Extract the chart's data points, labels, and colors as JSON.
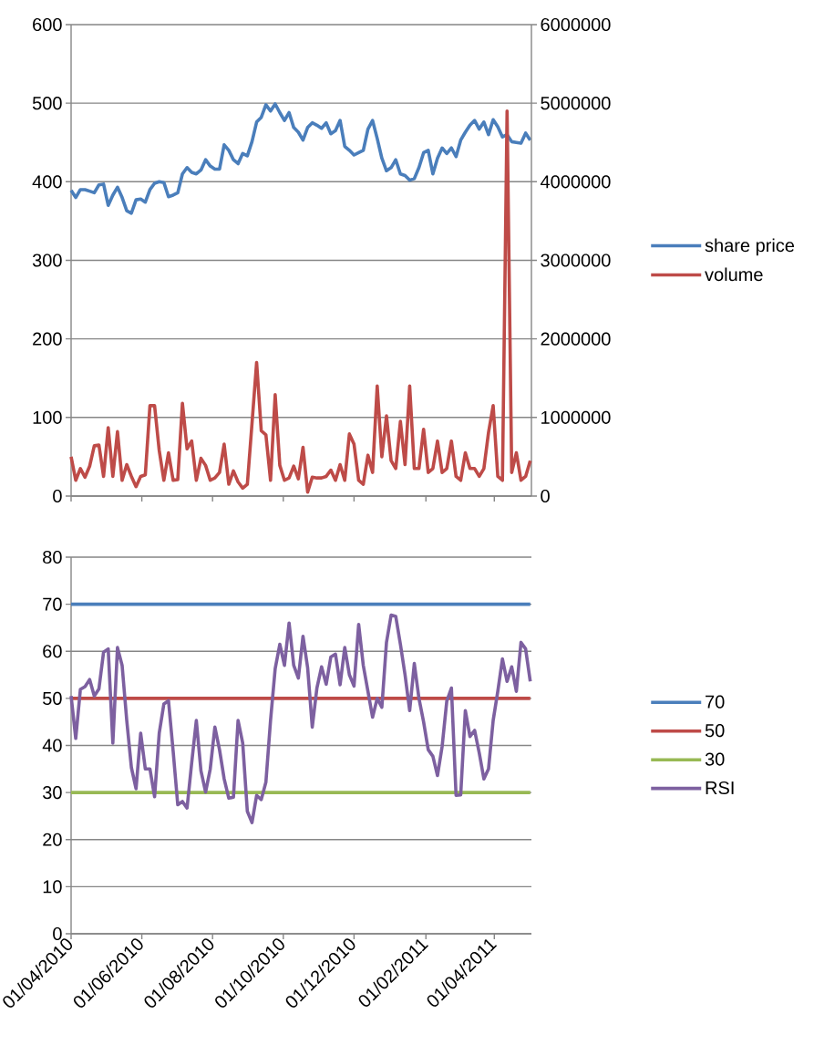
{
  "chart_data": [
    {
      "type": "line",
      "x": [
        "2010-04-01",
        "2010-04-05",
        "2010-04-09",
        "2010-04-13",
        "2010-04-17",
        "2010-04-21",
        "2010-04-25",
        "2010-04-29",
        "2010-05-03",
        "2010-05-07",
        "2010-05-11",
        "2010-05-15",
        "2010-05-19",
        "2010-05-23",
        "2010-05-27",
        "2010-05-31",
        "2010-06-04",
        "2010-06-08",
        "2010-06-12",
        "2010-06-16",
        "2010-06-20",
        "2010-06-24",
        "2010-06-28",
        "2010-07-02",
        "2010-07-06",
        "2010-07-10",
        "2010-07-14",
        "2010-07-18",
        "2010-07-22",
        "2010-07-26",
        "2010-07-30",
        "2010-08-03",
        "2010-08-07",
        "2010-08-11",
        "2010-08-15",
        "2010-08-19",
        "2010-08-23",
        "2010-08-27",
        "2010-08-31",
        "2010-09-04",
        "2010-09-08",
        "2010-09-12",
        "2010-09-16",
        "2010-09-20",
        "2010-09-24",
        "2010-09-28",
        "2010-10-02",
        "2010-10-06",
        "2010-10-10",
        "2010-10-14",
        "2010-10-18",
        "2010-10-22",
        "2010-10-26",
        "2010-10-30",
        "2010-11-03",
        "2010-11-07",
        "2010-11-11",
        "2010-11-15",
        "2010-11-19",
        "2010-11-23",
        "2010-11-27",
        "2010-12-01",
        "2010-12-05",
        "2010-12-09",
        "2010-12-13",
        "2010-12-17",
        "2010-12-21",
        "2010-12-25",
        "2010-12-29",
        "2011-01-02",
        "2011-01-06",
        "2011-01-10",
        "2011-01-14",
        "2011-01-18",
        "2011-01-22",
        "2011-01-26",
        "2011-01-30",
        "2011-02-03",
        "2011-02-07",
        "2011-02-11",
        "2011-02-15",
        "2011-02-19",
        "2011-02-23",
        "2011-02-27",
        "2011-03-03",
        "2011-03-07",
        "2011-03-11",
        "2011-03-15",
        "2011-03-19",
        "2011-03-23",
        "2011-03-27",
        "2011-03-31",
        "2011-04-04",
        "2011-04-08",
        "2011-04-12",
        "2011-04-16",
        "2011-04-20",
        "2011-04-24",
        "2011-04-28",
        "2011-05-02"
      ],
      "series": [
        {
          "name": "share price",
          "color": "#4a7ebb",
          "values": [
            389,
            380,
            390,
            390,
            388,
            386,
            396,
            397,
            370,
            383,
            393,
            380,
            363,
            360,
            377,
            378,
            374,
            390,
            398,
            400,
            399,
            381,
            383,
            386,
            410,
            418,
            412,
            410,
            415,
            428,
            420,
            416,
            416,
            447,
            440,
            428,
            423,
            436,
            433,
            451,
            476,
            482,
            498,
            490,
            499,
            488,
            478,
            488,
            469,
            463,
            453,
            469,
            475,
            472,
            468,
            475,
            461,
            465,
            478,
            445,
            440,
            434,
            437,
            440,
            467,
            478,
            455,
            430,
            414,
            418,
            428,
            410,
            408,
            402,
            404,
            418,
            437,
            440,
            410,
            430,
            443,
            436,
            443,
            432,
            453,
            463,
            472,
            478,
            467,
            476,
            460,
            479,
            470,
            457,
            460,
            451,
            450,
            449,
            462,
            453
          ]
        },
        {
          "name": "volume",
          "color": "#be4b48",
          "axis": "y2",
          "values": [
            500000,
            200000,
            350000,
            240000,
            380000,
            640000,
            650000,
            250000,
            870000,
            250000,
            820000,
            200000,
            400000,
            250000,
            120000,
            250000,
            270000,
            1150000,
            1150000,
            580000,
            200000,
            550000,
            200000,
            210000,
            1180000,
            600000,
            700000,
            200000,
            480000,
            390000,
            200000,
            230000,
            300000,
            660000,
            150000,
            320000,
            180000,
            100000,
            150000,
            920000,
            1700000,
            830000,
            780000,
            200000,
            1290000,
            390000,
            200000,
            230000,
            380000,
            220000,
            620000,
            50000,
            240000,
            230000,
            230000,
            250000,
            330000,
            200000,
            400000,
            200000,
            790000,
            660000,
            200000,
            150000,
            520000,
            300000,
            1400000,
            500000,
            1020000,
            450000,
            350000,
            950000,
            400000,
            1400000,
            350000,
            350000,
            850000,
            300000,
            350000,
            700000,
            300000,
            350000,
            700000,
            250000,
            200000,
            550000,
            350000,
            350000,
            250000,
            350000,
            810000,
            1150000,
            250000,
            200000,
            4900000,
            300000,
            550000,
            200000,
            250000,
            450000
          ]
        }
      ],
      "xlim": [
        "2010-04-01",
        "2011-05-03"
      ],
      "xticks": [
        {
          "value": "2010-04-01",
          "label": null
        },
        {
          "value": "2010-06-01",
          "label": null
        },
        {
          "value": "2010-08-01",
          "label": null
        },
        {
          "value": "2010-10-01",
          "label": null
        },
        {
          "value": "2010-12-01",
          "label": null
        },
        {
          "value": "2011-02-01",
          "label": null
        },
        {
          "value": "2011-04-01",
          "label": null
        }
      ],
      "ylim": [
        0,
        600
      ],
      "yticks": [
        0,
        100,
        200,
        300,
        400,
        500,
        600
      ],
      "y2lim": [
        0,
        6000000
      ],
      "y2ticks": [
        0,
        1000000,
        2000000,
        3000000,
        4000000,
        5000000,
        6000000
      ],
      "grid": "y",
      "legend": "right",
      "tick_labels": "y"
    },
    {
      "type": "line",
      "series": [
        {
          "name": "70",
          "color": "#4a7ebb",
          "x": [
            "2010-04-01",
            "2011-05-02"
          ],
          "values": [
            70,
            70
          ]
        },
        {
          "name": "50",
          "color": "#be4b48",
          "x": [
            "2010-04-01",
            "2011-05-02"
          ],
          "values": [
            50,
            50
          ]
        },
        {
          "name": "30",
          "color": "#98b954",
          "x": [
            "2010-04-01",
            "2011-05-02"
          ],
          "values": [
            30,
            30
          ]
        },
        {
          "name": "RSI",
          "color": "#7d60a0",
          "x": [
            "2010-04-01",
            "2010-04-05",
            "2010-04-09",
            "2010-04-13",
            "2010-04-17",
            "2010-04-21",
            "2010-04-25",
            "2010-04-29",
            "2010-05-03",
            "2010-05-07",
            "2010-05-11",
            "2010-05-15",
            "2010-05-19",
            "2010-05-23",
            "2010-05-27",
            "2010-05-31",
            "2010-06-04",
            "2010-06-08",
            "2010-06-12",
            "2010-06-16",
            "2010-06-20",
            "2010-06-24",
            "2010-06-28",
            "2010-07-02",
            "2010-07-06",
            "2010-07-10",
            "2010-07-14",
            "2010-07-18",
            "2010-07-22",
            "2010-07-26",
            "2010-07-30",
            "2010-08-03",
            "2010-08-07",
            "2010-08-11",
            "2010-08-15",
            "2010-08-19",
            "2010-08-23",
            "2010-08-27",
            "2010-08-31",
            "2010-09-04",
            "2010-09-08",
            "2010-09-12",
            "2010-09-16",
            "2010-09-20",
            "2010-09-24",
            "2010-09-28",
            "2010-10-02",
            "2010-10-06",
            "2010-10-10",
            "2010-10-14",
            "2010-10-18",
            "2010-10-22",
            "2010-10-26",
            "2010-10-30",
            "2010-11-03",
            "2010-11-07",
            "2010-11-11",
            "2010-11-15",
            "2010-11-19",
            "2010-11-23",
            "2010-11-27",
            "2010-12-01",
            "2010-12-05",
            "2010-12-09",
            "2010-12-13",
            "2010-12-17",
            "2010-12-21",
            "2010-12-25",
            "2010-12-29",
            "2011-01-02",
            "2011-01-06",
            "2011-01-10",
            "2011-01-14",
            "2011-01-18",
            "2011-01-22",
            "2011-01-26",
            "2011-01-30",
            "2011-02-03",
            "2011-02-07",
            "2011-02-11",
            "2011-02-15",
            "2011-02-19",
            "2011-02-23",
            "2011-02-27",
            "2011-03-03",
            "2011-03-07",
            "2011-03-11",
            "2011-03-15",
            "2011-03-19",
            "2011-03-23",
            "2011-03-27",
            "2011-03-31",
            "2011-04-04",
            "2011-04-08",
            "2011-04-12",
            "2011-04-16",
            "2011-04-20",
            "2011-04-24",
            "2011-04-28",
            "2011-05-02"
          ],
          "values": [
            50.5,
            41.5,
            51.9,
            52.5,
            54,
            50.5,
            52,
            59.8,
            60.5,
            40.5,
            60.8,
            57,
            45.3,
            35.3,
            30.8,
            42.6,
            35,
            35,
            29.1,
            42.6,
            48.8,
            49.5,
            38.8,
            27.4,
            28.1,
            26.7,
            36.3,
            45.3,
            34.6,
            30.1,
            35,
            43.9,
            39.1,
            32.9,
            28.8,
            29,
            45.3,
            40.5,
            26,
            23.6,
            29.4,
            28.5,
            32.2,
            45.3,
            56.3,
            61.5,
            57,
            66,
            57,
            54.3,
            63.2,
            56.5,
            43.9,
            52.2,
            56.7,
            53,
            58.8,
            59.4,
            52.9,
            60.8,
            55,
            52.6,
            65.7,
            57,
            51.5,
            46,
            50,
            48.1,
            61.9,
            67.7,
            67.4,
            61.5,
            55,
            47.4,
            57.4,
            50,
            45,
            39.1,
            37.7,
            33.6,
            39.8,
            49.4,
            52.2,
            29.4,
            29.5,
            47.4,
            41.9,
            43.2,
            38.4,
            32.9,
            35,
            45.3,
            51.5,
            58.4,
            53.6,
            56.7,
            51.5,
            61.9,
            60.5,
            53.6
          ]
        }
      ],
      "xlim": [
        "2010-04-01",
        "2011-05-03"
      ],
      "xticks": [
        {
          "value": "2010-04-01",
          "label": "01/04/2010"
        },
        {
          "value": "2010-06-01",
          "label": "01/06/2010"
        },
        {
          "value": "2010-08-01",
          "label": "01/08/2010"
        },
        {
          "value": "2010-10-01",
          "label": "01/10/2010"
        },
        {
          "value": "2010-12-01",
          "label": "01/12/2010"
        },
        {
          "value": "2011-02-01",
          "label": "01/02/2011"
        },
        {
          "value": "2011-04-01",
          "label": "01/04/2011"
        }
      ],
      "ylim": [
        0,
        80
      ],
      "yticks": [
        0,
        10,
        20,
        30,
        40,
        50,
        60,
        70,
        80
      ],
      "grid": "y",
      "legend": "right"
    }
  ]
}
